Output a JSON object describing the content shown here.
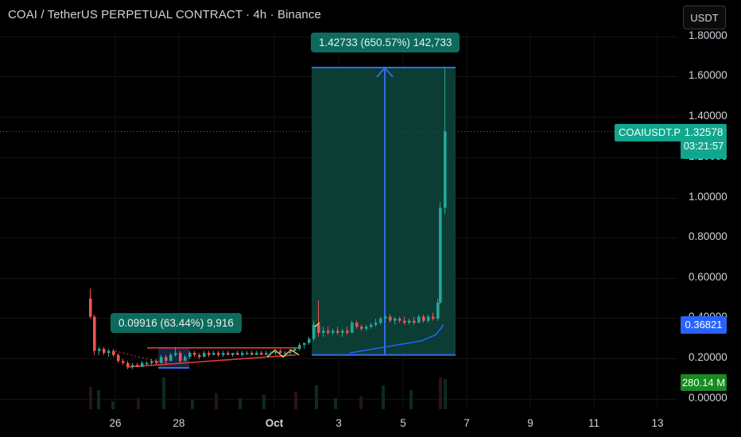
{
  "title": "COAI / TetherUS PERPETUAL CONTRACT · 4h · Binance",
  "currency_button": "USDT",
  "y_axis_ticks": [
    "1.80000",
    "1.60000",
    "1.40000",
    "1.20000",
    "1.00000",
    "0.80000",
    "0.60000",
    "0.40000",
    "0.20000",
    "0.00000"
  ],
  "x_axis_ticks": [
    "26",
    "28",
    "Oct",
    "3",
    "5",
    "7",
    "9",
    "11",
    "13"
  ],
  "symbol_badge": "COAIUSDT.P",
  "price_badge": "1.32578",
  "countdown_badge": "03:21:57",
  "ma_badge": "0.36821",
  "volume_badge": "280.14 M",
  "measure_small": "0.09916 (63.44%) 9,916",
  "measure_large": "1.42733 (650.57%) 142,733",
  "colors": {
    "up": "#26a69a",
    "down": "#ef5350",
    "ma": "#2962ff",
    "measure_fill": "#0d3b33",
    "measure_line": "#2f6ee8"
  },
  "chart_data": {
    "type": "candlestick",
    "interval": "4h",
    "ylim": [
      0,
      1.8
    ],
    "last_price": 1.32578,
    "candles_daily_summary": [
      {
        "x": "25",
        "o": 0.5,
        "h": 0.55,
        "l": 0.22,
        "c": 0.24
      },
      {
        "x": "26",
        "o": 0.24,
        "h": 0.27,
        "l": 0.17,
        "c": 0.19
      },
      {
        "x": "27",
        "o": 0.19,
        "h": 0.22,
        "l": 0.17,
        "c": 0.21
      },
      {
        "x": "28",
        "o": 0.21,
        "h": 0.24,
        "l": 0.18,
        "c": 0.23
      },
      {
        "x": "29",
        "o": 0.23,
        "h": 0.24,
        "l": 0.2,
        "c": 0.22
      },
      {
        "x": "30",
        "o": 0.22,
        "h": 0.24,
        "l": 0.21,
        "c": 0.23
      },
      {
        "x": "Oct",
        "o": 0.23,
        "h": 0.3,
        "l": 0.22,
        "c": 0.29
      },
      {
        "x": "2",
        "o": 0.29,
        "h": 0.49,
        "l": 0.28,
        "c": 0.33
      },
      {
        "x": "3",
        "o": 0.33,
        "h": 0.38,
        "l": 0.3,
        "c": 0.35
      },
      {
        "x": "4",
        "o": 0.35,
        "h": 0.42,
        "l": 0.33,
        "c": 0.4
      },
      {
        "x": "5",
        "o": 0.4,
        "h": 0.42,
        "l": 0.37,
        "c": 0.39
      },
      {
        "x": "6",
        "o": 0.39,
        "h": 1.65,
        "l": 0.38,
        "c": 1.33
      }
    ],
    "ma_series_end": 0.36821,
    "volume_last": "280.14 M",
    "measure_ranges": [
      {
        "label": "0.09916 (63.44%) 9,916",
        "from": 0.156,
        "to": 0.255
      },
      {
        "label": "1.42733 (650.57%) 142,733",
        "from": 0.22,
        "to": 1.647
      }
    ]
  }
}
